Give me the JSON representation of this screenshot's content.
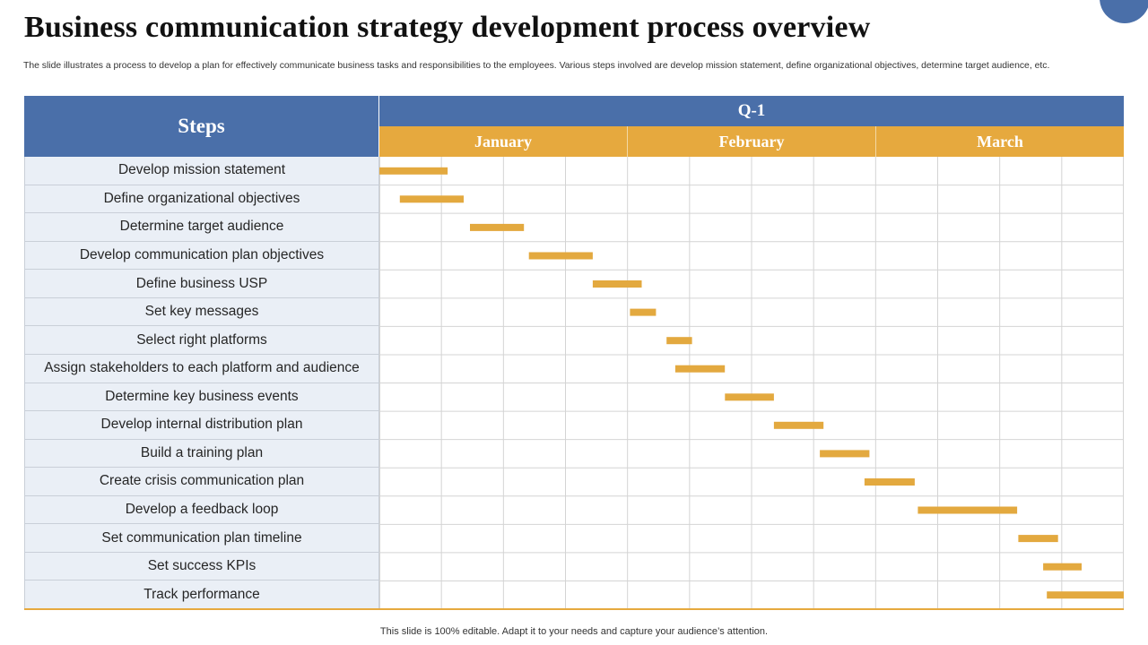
{
  "page": {
    "title": "Business communication strategy development process overview",
    "subtitle": "The slide illustrates a process to develop a plan for effectively  communicate business tasks and responsibilities to the employees. Various steps involved are develop mission statement, define organizational objectives, determine target audience, etc.",
    "footer": "This slide is 100% editable. Adapt it to your needs and capture your audience’s attention."
  },
  "colors": {
    "header_blue": "#4a6fa9",
    "month_orange": "#e6a93e",
    "bar_orange": "#e3a93f",
    "step_bg": "#eaeff6",
    "grid_line": "#d4d4d4",
    "corner_circle": "#4a6fa9"
  },
  "chart_data": {
    "type": "gantt",
    "steps_header": "Steps",
    "quarter": "Q-1",
    "months": [
      "January",
      "February",
      "March"
    ],
    "timeline_units": "weeks",
    "timeline_range": [
      0,
      12
    ],
    "grid": true,
    "tasks": [
      {
        "name": "Develop mission statement",
        "start": 0.0,
        "end": 1.1
      },
      {
        "name": "Define organizational objectives",
        "start": 0.33,
        "end": 1.36
      },
      {
        "name": "Determine target audience",
        "start": 1.46,
        "end": 2.33
      },
      {
        "name": "Develop communication plan objectives",
        "start": 2.41,
        "end": 3.44
      },
      {
        "name": "Define business USP",
        "start": 3.44,
        "end": 4.23
      },
      {
        "name": "Set key messages",
        "start": 4.04,
        "end": 4.46
      },
      {
        "name": "Select right platforms",
        "start": 4.63,
        "end": 5.04
      },
      {
        "name": "Assign stakeholders to each platform and audience",
        "start": 4.77,
        "end": 5.57
      },
      {
        "name": "Determine key business events",
        "start": 5.57,
        "end": 6.36
      },
      {
        "name": "Develop internal distribution plan",
        "start": 6.36,
        "end": 7.16
      },
      {
        "name": "Build a training plan",
        "start": 7.1,
        "end": 7.9
      },
      {
        "name": "Create crisis communication plan",
        "start": 7.82,
        "end": 8.63
      },
      {
        "name": "Develop a feedback loop",
        "start": 8.68,
        "end": 10.28
      },
      {
        "name": "Set communication plan timeline",
        "start": 10.3,
        "end": 10.94
      },
      {
        "name": "Set success KPIs",
        "start": 10.7,
        "end": 11.32
      },
      {
        "name": "Track performance",
        "start": 10.76,
        "end": 12.0
      }
    ]
  }
}
